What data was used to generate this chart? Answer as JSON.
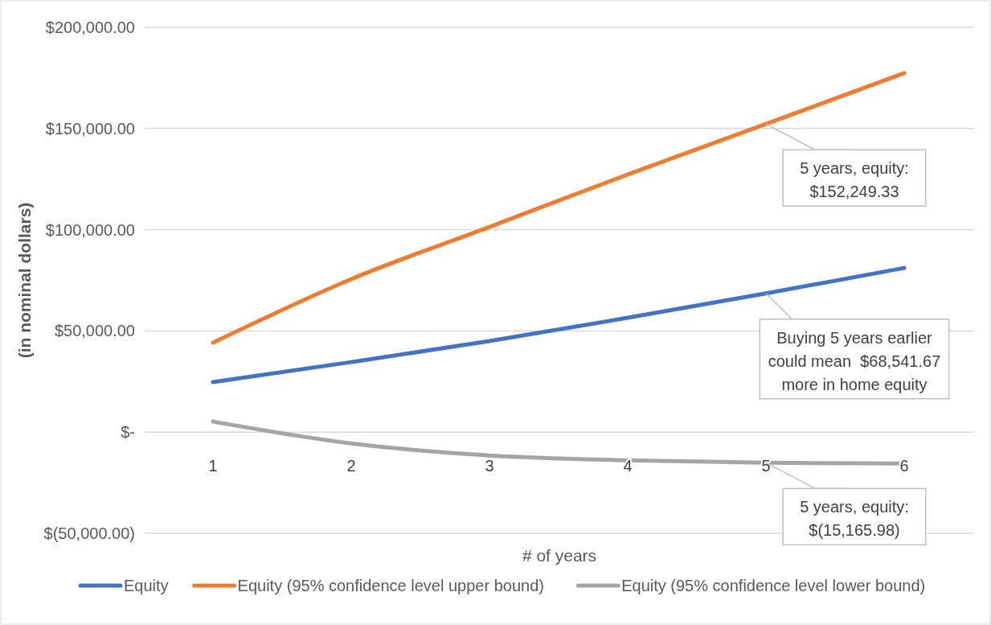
{
  "chart_data": {
    "type": "line",
    "xlabel": "# of years",
    "ylabel": "(in nominal dollars)",
    "categories": [
      "1",
      "2",
      "3",
      "4",
      "5",
      "6"
    ],
    "ylim": [
      -50000,
      200000
    ],
    "yticks": [
      {
        "value": -50000,
        "label": "$(50,000.00)"
      },
      {
        "value": 0,
        "label": "$-"
      },
      {
        "value": 50000,
        "label": "$50,000.00"
      },
      {
        "value": 100000,
        "label": "$100,000.00"
      },
      {
        "value": 150000,
        "label": "$150,000.00"
      },
      {
        "value": 200000,
        "label": "$200,000.00"
      }
    ],
    "grid": "y",
    "legend": "bottom",
    "marker": "none",
    "line_style": "solid",
    "series": [
      {
        "name": "Equity",
        "color": "#4472c4",
        "values": [
          24700,
          34600,
          45000,
          56500,
          68541.67,
          81100
        ]
      },
      {
        "name": "Equity (95% confidence level upper bound)",
        "color": "#ed7d31",
        "values": [
          44200,
          75600,
          101400,
          127300,
          152249.33,
          177400
        ]
      },
      {
        "name": "Equity (95% confidence level lower bound)",
        "color": "#a5a5a5",
        "values": [
          5200,
          -5600,
          -11500,
          -13900,
          -15165.98,
          -15500
        ]
      }
    ],
    "annotations": [
      {
        "text": "5 years, equity:\n$152,249.33",
        "x": "5",
        "y": 152249.33
      },
      {
        "text": "Buying 5 years earlier\ncould mean  $68,541.67\nmore in home equity",
        "x": "5",
        "y": 68541.67
      },
      {
        "text": "5 years, equity:\n$(15,165.98)",
        "x": "5",
        "y": -15165.98
      }
    ]
  }
}
